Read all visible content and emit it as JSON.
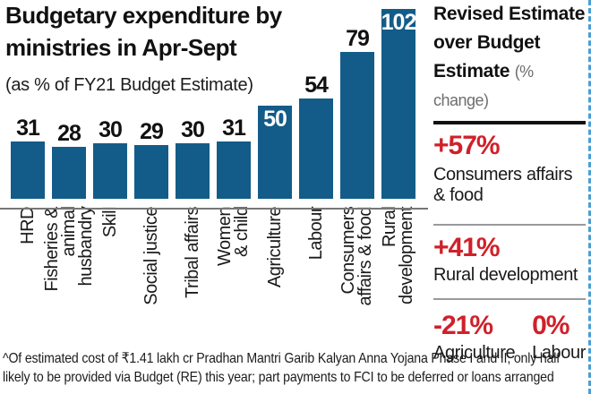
{
  "page": {
    "title": "Budgetary expenditure by\nministries in Apr-Sept",
    "subtitle": "(as % of FY21 Budget Estimate)",
    "footnote": "^Of estimated cost of ₹1.41 lakh cr Pradhan Mantri Garib Kalyan Anna Yojana Phase I and II, only half\nlikely to be provided via Budget (RE) this year; part payments to FCI to be deferred or loans arranged"
  },
  "chart_data": {
    "type": "bar",
    "title": "Budgetary expenditure by ministries in Apr-Sept",
    "subtitle": "(as % of FY21 Budget Estimate)",
    "categories": [
      "HRD",
      "Fisheries &\nanimal\nhusbandry",
      "Skill",
      "Social justice",
      "Tribal affairs",
      "Women\n& child",
      "Agriculture",
      "Labour",
      "Consumers\naffairs & food",
      "Rural\ndevelopment"
    ],
    "values": [
      31,
      28,
      30,
      29,
      30,
      31,
      50,
      54,
      79,
      102
    ],
    "value_label_inside": [
      false,
      false,
      false,
      false,
      false,
      false,
      true,
      false,
      false,
      true
    ],
    "ylim": [
      0,
      102
    ],
    "xlabel": "",
    "ylabel": "",
    "grid": false,
    "legend": false,
    "bar_color": "#135c89"
  },
  "side_panel": {
    "title": "Revised Estimate\nover Budget\nEstimate",
    "title_suffix": "(% change)",
    "entries": [
      {
        "value": "+57%",
        "label": "Consumers affairs\n& food"
      },
      {
        "value": "+41%",
        "label": "Rural development"
      },
      {
        "value": "-21%",
        "label": "Agriculture"
      },
      {
        "value": "0%",
        "label": "Labour"
      }
    ]
  },
  "colors": {
    "bar": "#135c89",
    "accent_red": "#d0202a",
    "muted_gray": "#6e6e6e",
    "axis": "#777777",
    "divider_dark": "#111111",
    "divider_light": "#9a9a9a",
    "border_dashed_blue": "#4a9fd4"
  }
}
